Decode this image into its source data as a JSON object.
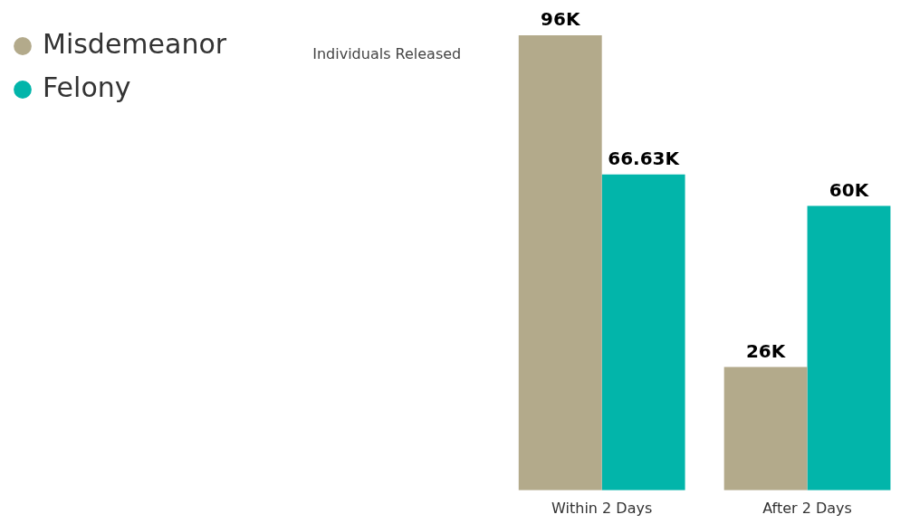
{
  "chart_data": {
    "type": "bar",
    "ylabel": "Individuals Released",
    "categories": [
      "Within 2 Days",
      "After 2 Days"
    ],
    "series": [
      {
        "name": "Misdemeanor",
        "color": "#b3aa8b",
        "values": [
          96000,
          26000
        ],
        "value_labels": [
          "96K",
          "26K"
        ]
      },
      {
        "name": "Felony",
        "color": "#02b5aa",
        "values": [
          66630,
          60000
        ],
        "value_labels": [
          "66.63K",
          "60K"
        ]
      }
    ],
    "legend": "top left",
    "grid": false
  }
}
